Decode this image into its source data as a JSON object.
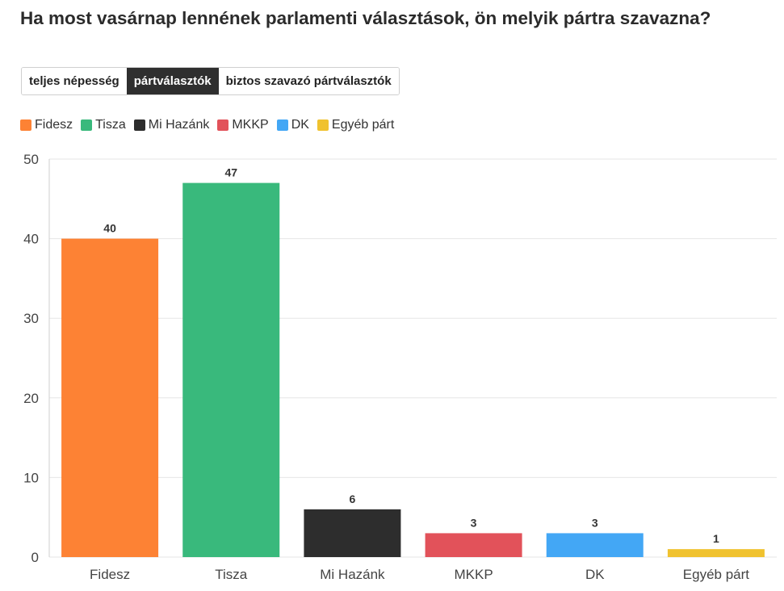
{
  "title": "Ha most vasárnap lennének parlamenti választások, ön melyik pártra szavazna?",
  "tabs": [
    {
      "label": "teljes népesség",
      "active": false
    },
    {
      "label": "pártválasztók",
      "active": true
    },
    {
      "label": "biztos szavazó pártválasztók",
      "active": false
    }
  ],
  "legend": [
    {
      "label": "Fidesz",
      "color": "#fd8234"
    },
    {
      "label": "Tisza",
      "color": "#39b97c"
    },
    {
      "label": "Mi Hazánk",
      "color": "#2d2d2d"
    },
    {
      "label": "MKKP",
      "color": "#e2525a"
    },
    {
      "label": "DK",
      "color": "#43a7f5"
    },
    {
      "label": "Egyéb párt",
      "color": "#f0c22f"
    }
  ],
  "chart_data": {
    "type": "bar",
    "categories": [
      "Fidesz",
      "Tisza",
      "Mi Hazánk",
      "MKKP",
      "DK",
      "Egyéb párt"
    ],
    "values": [
      40,
      47,
      6,
      3,
      3,
      1
    ],
    "colors": [
      "#fd8234",
      "#39b97c",
      "#2d2d2d",
      "#e2525a",
      "#43a7f5",
      "#f0c22f"
    ],
    "ylim": [
      0,
      50
    ],
    "yticks": [
      0,
      10,
      20,
      30,
      40,
      50
    ],
    "grid": true,
    "legend_position": "top-left"
  }
}
